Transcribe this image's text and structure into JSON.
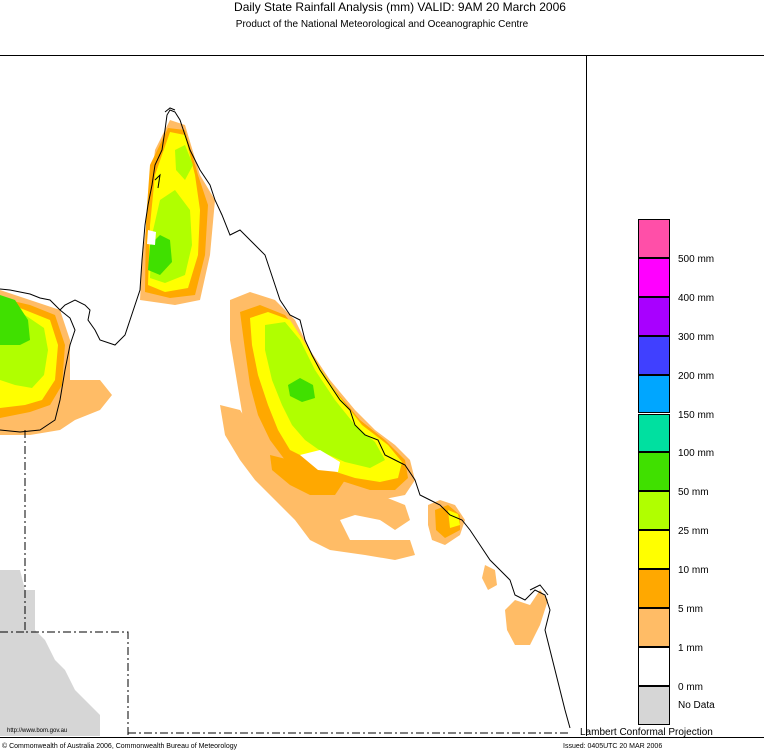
{
  "header": {
    "title": "Daily State Rainfall Analysis (mm)  VALID: 9AM 20 March 2006",
    "subtitle": "Product of the National Meteorological and Oceanographic Centre"
  },
  "legend": {
    "items": [
      {
        "label": "500 mm",
        "color": "#ff4fa8"
      },
      {
        "label": "400 mm",
        "color": "#ff00ff"
      },
      {
        "label": "300 mm",
        "color": "#a800ff"
      },
      {
        "label": "200 mm",
        "color": "#4040ff"
      },
      {
        "label": "150 mm",
        "color": "#00a6ff"
      },
      {
        "label": "100 mm",
        "color": "#00e0a0"
      },
      {
        "label": "50 mm",
        "color": "#40e000"
      },
      {
        "label": "25 mm",
        "color": "#b0ff00"
      },
      {
        "label": "10 mm",
        "color": "#ffff00"
      },
      {
        "label": "5 mm",
        "color": "#ffa800"
      },
      {
        "label": "1 mm",
        "color": "#ffbc66"
      },
      {
        "label": "0 mm",
        "color": "#ffffff"
      },
      {
        "label": "No Data",
        "color": "#d6d6d6"
      }
    ]
  },
  "projection": "Lambert Conformal Projection",
  "footer": {
    "copyright": "© Commonwealth of Australia 2006, Commonwealth Bureau of Meteorology",
    "issued": "Issued: 0405UTC 20 MAR 2006",
    "url": "http://www.bom.gov.au"
  }
}
